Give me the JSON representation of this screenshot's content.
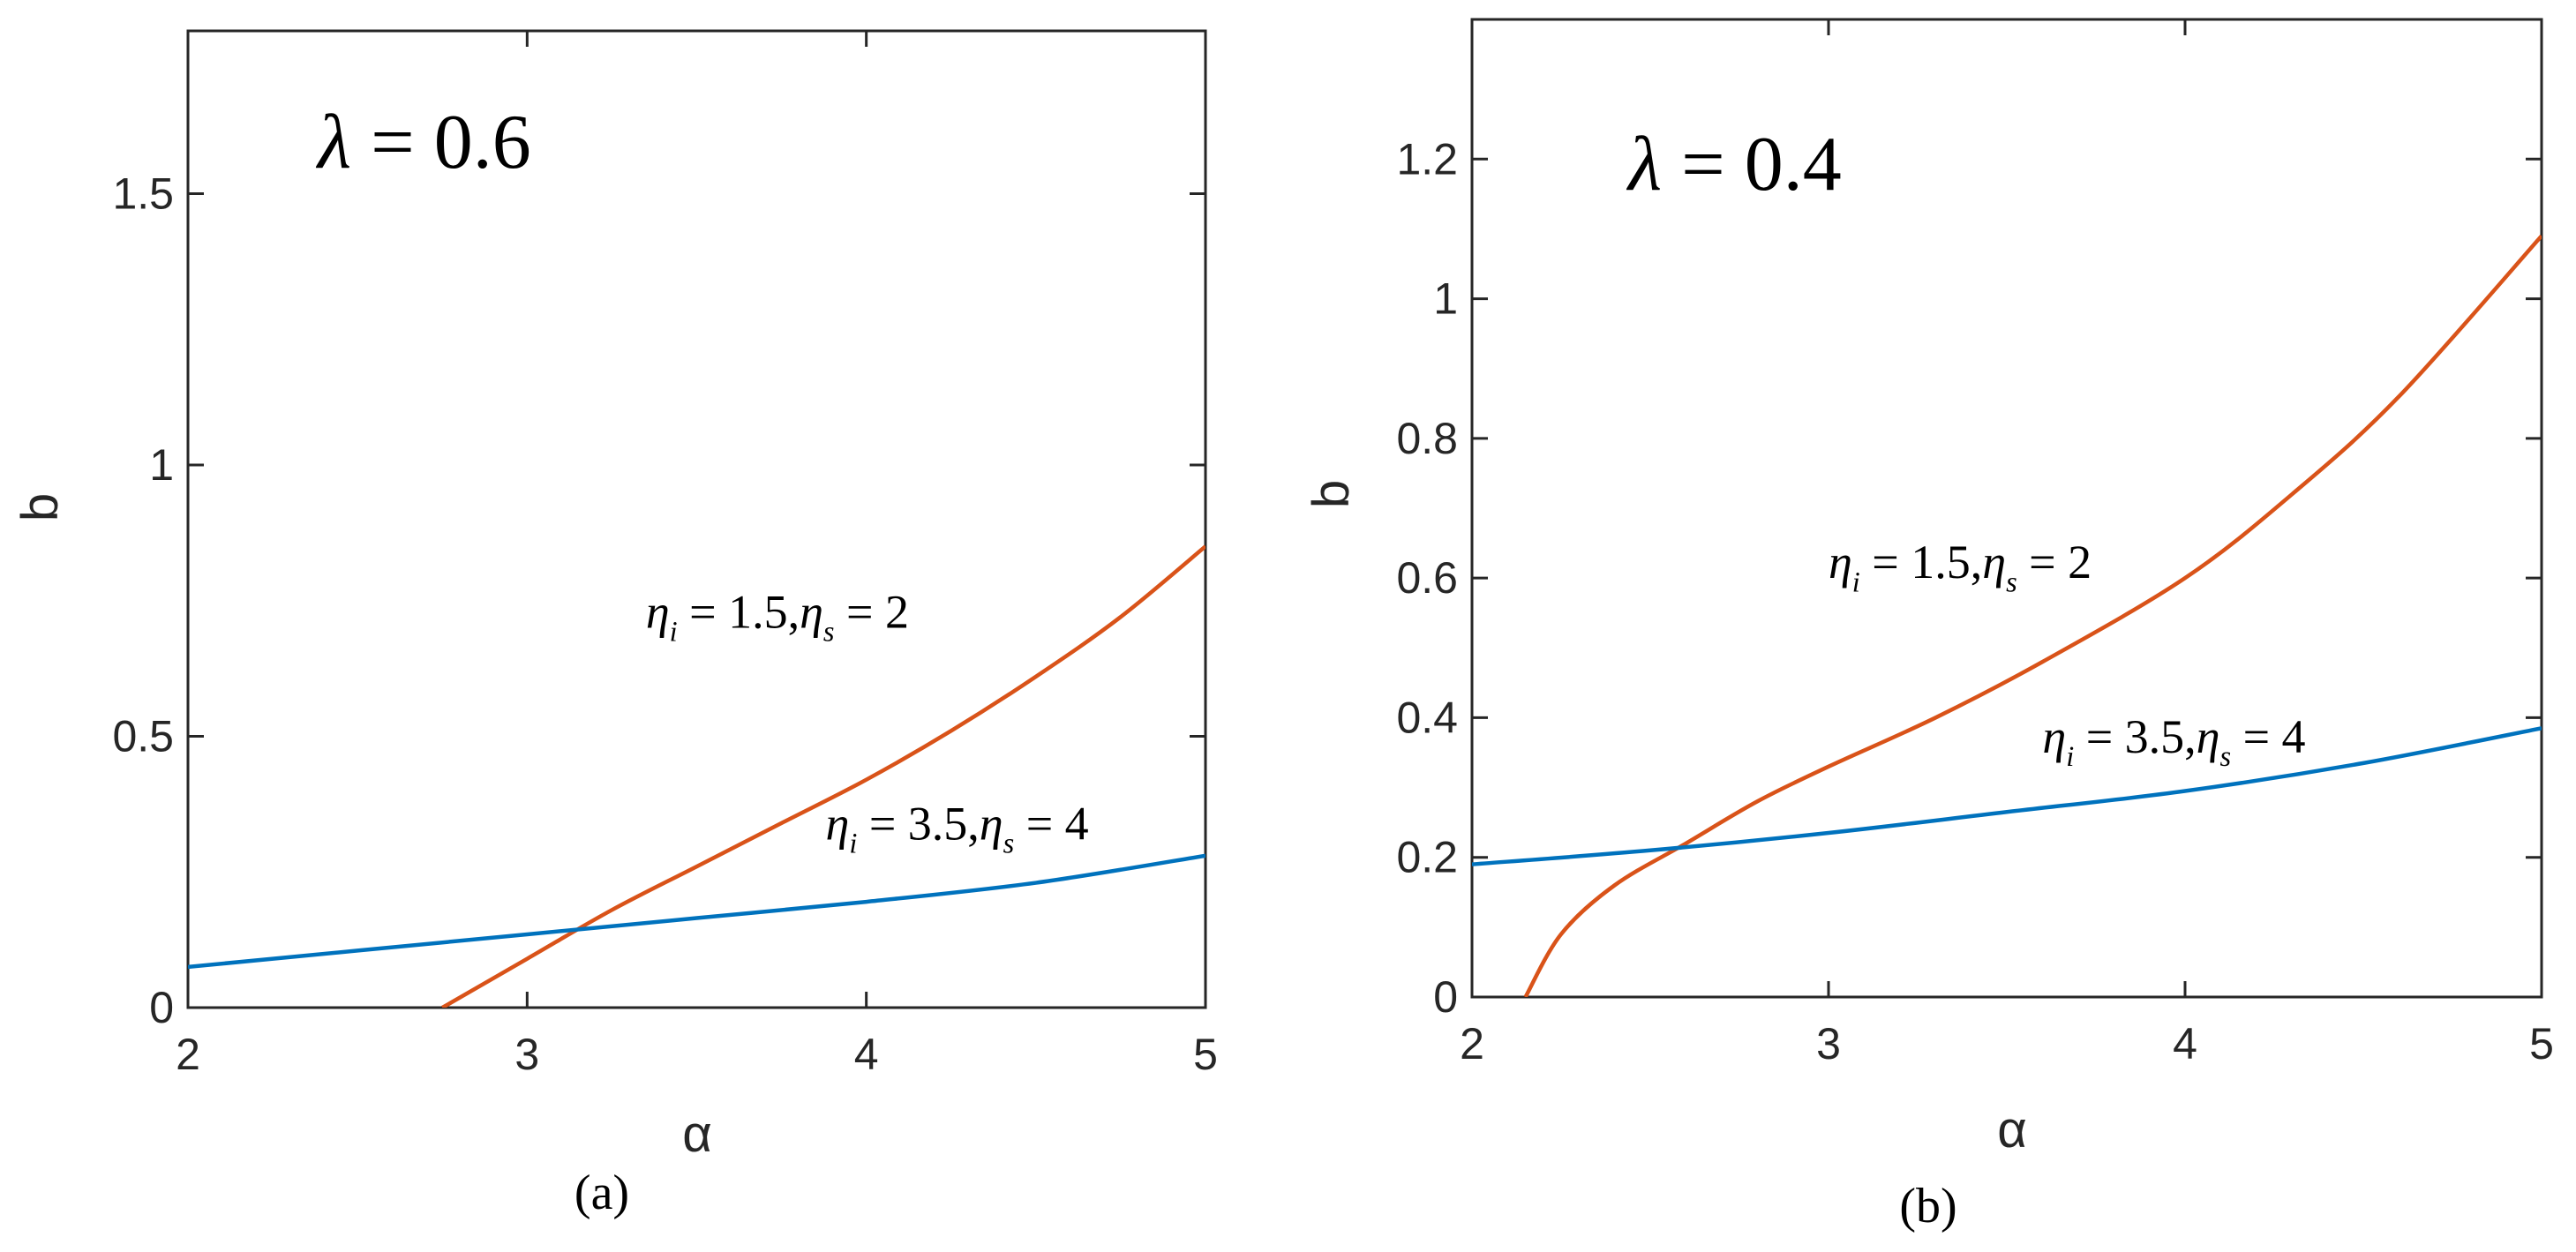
{
  "chart_data": [
    {
      "type": "line",
      "panel_label": "(a)",
      "annotation_lambda": {
        "symbol": "λ",
        "eq": " = ",
        "value": "0.6"
      },
      "xlabel": "α",
      "ylabel": "b",
      "xlim": [
        2,
        5
      ],
      "ylim": [
        0,
        1.8
      ],
      "xticks": [
        "2",
        "3",
        "4",
        "5"
      ],
      "xtick_values": [
        2,
        3,
        4,
        5
      ],
      "yticks": [
        "0",
        "0.5",
        "1",
        "1.5"
      ],
      "ytick_values": [
        0,
        0.5,
        1,
        1.5
      ],
      "grid": false,
      "series": [
        {
          "color": "#D95319",
          "label": {
            "eta_i": "1.5",
            "eta_s": "2",
            "at": [
              3.35,
              0.7
            ]
          },
          "x": [
            2.75,
            3.0,
            3.25,
            3.5,
            3.75,
            4.0,
            4.25,
            4.5,
            4.75,
            5.0
          ],
          "y": [
            0.0,
            0.09,
            0.18,
            0.26,
            0.34,
            0.42,
            0.51,
            0.61,
            0.72,
            0.85
          ]
        },
        {
          "color": "#0072BD",
          "label": {
            "eta_i": "3.5",
            "eta_s": "4",
            "at": [
              3.88,
              0.31
            ]
          },
          "x": [
            2.0,
            2.5,
            3.0,
            3.5,
            4.0,
            4.5,
            5.0
          ],
          "y": [
            0.075,
            0.105,
            0.135,
            0.165,
            0.195,
            0.23,
            0.28
          ]
        }
      ]
    },
    {
      "type": "line",
      "panel_label": "(b)",
      "annotation_lambda": {
        "symbol": "λ",
        "eq": " = ",
        "value": "0.4"
      },
      "xlabel": "α",
      "ylabel": "b",
      "xlim": [
        2,
        5
      ],
      "ylim": [
        0,
        1.4
      ],
      "xticks": [
        "2",
        "3",
        "4",
        "5"
      ],
      "xtick_values": [
        2,
        3,
        4,
        5
      ],
      "yticks": [
        "0",
        "0.2",
        "0.4",
        "0.6",
        "0.8",
        "1",
        "1.2"
      ],
      "ytick_values": [
        0,
        0.2,
        0.4,
        0.6,
        0.8,
        1.0,
        1.2
      ],
      "grid": false,
      "series": [
        {
          "color": "#D95319",
          "label": {
            "eta_i": "1.5",
            "eta_s": "2",
            "at": [
              3.0,
              0.6
            ]
          },
          "x": [
            2.15,
            2.25,
            2.4,
            2.6,
            2.8,
            3.0,
            3.3,
            3.6,
            4.0,
            4.3,
            4.6,
            5.0
          ],
          "y": [
            0.0,
            0.09,
            0.16,
            0.22,
            0.28,
            0.33,
            0.4,
            0.48,
            0.6,
            0.72,
            0.86,
            1.09
          ]
        },
        {
          "color": "#0072BD",
          "label": {
            "eta_i": "3.5",
            "eta_s": "4",
            "at": [
              3.6,
              0.35
            ]
          },
          "x": [
            2.0,
            2.5,
            3.0,
            3.5,
            4.0,
            4.5,
            5.0
          ],
          "y": [
            0.19,
            0.21,
            0.235,
            0.265,
            0.295,
            0.335,
            0.385
          ]
        }
      ]
    }
  ]
}
